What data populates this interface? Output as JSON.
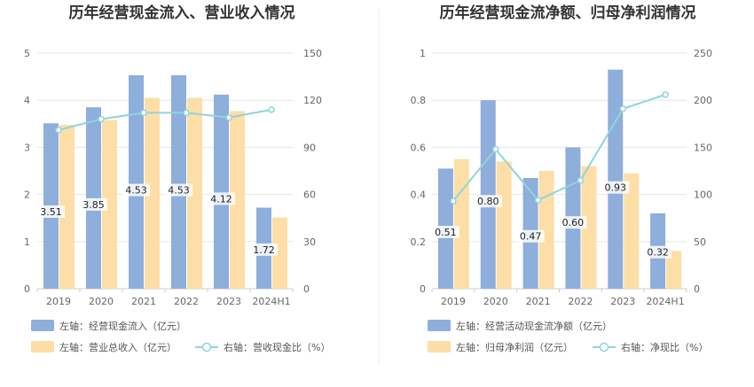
{
  "chart_data": [
    {
      "type": "bar",
      "title": "历年经营现金流入、营业收入情况",
      "categories": [
        "2019",
        "2020",
        "2021",
        "2022",
        "2023",
        "2024H1"
      ],
      "left_axis": {
        "range": [
          0,
          5
        ],
        "ticks": [
          "0",
          "1",
          "2",
          "3",
          "4",
          "5"
        ]
      },
      "right_axis": {
        "range": [
          0,
          150
        ],
        "ticks": [
          "0",
          "30",
          "60",
          "90",
          "120",
          "150"
        ]
      },
      "series": [
        {
          "name": "左轴：经营现金流入（亿元）",
          "type": "bar",
          "axis": "left",
          "color": "#8eaedb",
          "values": [
            3.51,
            3.85,
            4.53,
            4.53,
            4.12,
            1.72
          ],
          "labels": [
            "3.51",
            "3.85",
            "4.53",
            "4.53",
            "4.12",
            "1.72"
          ]
        },
        {
          "name": "左轴：营业总收入（亿元）",
          "type": "bar",
          "axis": "left",
          "color": "#fddea6",
          "values": [
            3.48,
            3.58,
            4.05,
            4.05,
            3.77,
            1.51
          ]
        },
        {
          "name": "右轴：营收现金比（%）",
          "type": "line",
          "axis": "right",
          "color": "#8fd4de",
          "values": [
            101,
            108,
            112,
            112,
            109,
            114
          ]
        }
      ]
    },
    {
      "type": "bar",
      "title": "历年经营现金流净额、归母净利润情况",
      "categories": [
        "2019",
        "2020",
        "2021",
        "2022",
        "2023",
        "2024H1"
      ],
      "left_axis": {
        "range": [
          0,
          1
        ],
        "ticks": [
          "0",
          "0.2",
          "0.4",
          "0.6",
          "0.8",
          "1"
        ]
      },
      "right_axis": {
        "range": [
          0,
          250
        ],
        "ticks": [
          "0",
          "50",
          "100",
          "150",
          "200",
          "250"
        ]
      },
      "series": [
        {
          "name": "左轴：经营活动现金流净额（亿元）",
          "type": "bar",
          "axis": "left",
          "color": "#8eaedb",
          "values": [
            0.51,
            0.8,
            0.47,
            0.6,
            0.93,
            0.32
          ],
          "labels": [
            "0.51",
            "0.80",
            "0.47",
            "0.60",
            "0.93",
            "0.32"
          ]
        },
        {
          "name": "左轴：归母净利润（亿元）",
          "type": "bar",
          "axis": "left",
          "color": "#fddea6",
          "values": [
            0.55,
            0.54,
            0.5,
            0.52,
            0.49,
            0.16
          ]
        },
        {
          "name": "右轴：净现比（%）",
          "type": "line",
          "axis": "right",
          "color": "#8fd4de",
          "values": [
            93,
            148,
            94,
            115,
            191,
            206
          ]
        }
      ]
    }
  ]
}
